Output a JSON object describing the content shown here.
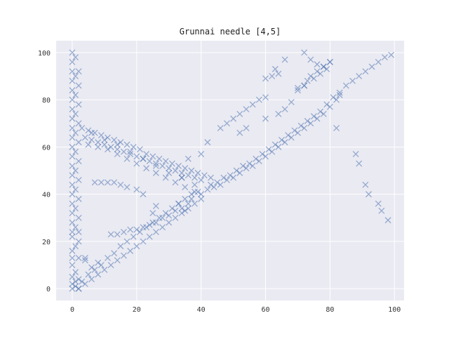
{
  "chart_data": {
    "type": "scatter",
    "title": "Grunnai needle [4,5]",
    "xlabel": "",
    "ylabel": "",
    "xlim": [
      -5,
      103
    ],
    "ylim": [
      -5,
      105
    ],
    "xticks": [
      0,
      20,
      40,
      60,
      80,
      100
    ],
    "yticks": [
      0,
      20,
      40,
      60,
      80,
      100
    ],
    "grid": true,
    "marker": "x",
    "colors": {
      "marker": "#4c72b0",
      "plot_bg": "#eaeaf2",
      "grid": "#ffffff"
    },
    "series": [
      {
        "values_description_free": true,
        "points": [
          [
            0,
            100
          ],
          [
            0,
            96
          ],
          [
            0,
            92
          ],
          [
            0,
            88
          ],
          [
            0,
            84
          ],
          [
            0,
            80
          ],
          [
            0,
            76
          ],
          [
            0,
            72
          ],
          [
            0,
            68
          ],
          [
            0,
            64
          ],
          [
            0,
            60
          ],
          [
            0,
            56
          ],
          [
            0,
            52
          ],
          [
            0,
            48
          ],
          [
            0,
            44
          ],
          [
            0,
            40
          ],
          [
            0,
            36
          ],
          [
            0,
            32
          ],
          [
            0,
            28
          ],
          [
            0,
            24
          ],
          [
            0,
            22
          ],
          [
            1,
            98
          ],
          [
            1,
            90
          ],
          [
            1,
            82
          ],
          [
            1,
            74
          ],
          [
            1,
            66
          ],
          [
            1,
            58
          ],
          [
            1,
            50
          ],
          [
            1,
            42
          ],
          [
            1,
            34
          ],
          [
            1,
            26
          ],
          [
            2,
            92
          ],
          [
            2,
            86
          ],
          [
            2,
            78
          ],
          [
            2,
            70
          ],
          [
            2,
            62
          ],
          [
            2,
            54
          ],
          [
            2,
            46
          ],
          [
            2,
            38
          ],
          [
            2,
            30
          ],
          [
            2,
            24
          ],
          [
            0,
            0
          ],
          [
            0,
            2
          ],
          [
            0,
            5
          ],
          [
            1,
            1
          ],
          [
            1,
            3
          ],
          [
            1,
            7
          ],
          [
            2,
            0
          ],
          [
            2,
            4
          ],
          [
            0,
            10
          ],
          [
            0,
            13
          ],
          [
            2,
            13
          ],
          [
            4,
            13
          ],
          [
            3,
            68
          ],
          [
            5,
            67
          ],
          [
            7,
            66
          ],
          [
            9,
            65
          ],
          [
            11,
            64
          ],
          [
            13,
            63
          ],
          [
            15,
            62
          ],
          [
            17,
            61
          ],
          [
            19,
            60
          ],
          [
            21,
            59
          ],
          [
            23,
            57
          ],
          [
            25,
            56
          ],
          [
            27,
            55
          ],
          [
            29,
            54
          ],
          [
            31,
            53
          ],
          [
            33,
            52
          ],
          [
            35,
            51
          ],
          [
            37,
            50
          ],
          [
            39,
            49
          ],
          [
            41,
            48
          ],
          [
            43,
            47
          ],
          [
            4,
            64
          ],
          [
            6,
            63
          ],
          [
            8,
            62
          ],
          [
            10,
            61
          ],
          [
            12,
            60
          ],
          [
            14,
            59
          ],
          [
            16,
            58
          ],
          [
            18,
            57
          ],
          [
            20,
            56
          ],
          [
            22,
            55
          ],
          [
            24,
            54
          ],
          [
            26,
            53
          ],
          [
            28,
            52
          ],
          [
            30,
            51
          ],
          [
            32,
            50
          ],
          [
            34,
            49
          ],
          [
            36,
            48
          ],
          [
            38,
            47
          ],
          [
            40,
            46
          ],
          [
            5,
            61
          ],
          [
            8,
            60
          ],
          [
            11,
            59
          ],
          [
            14,
            57
          ],
          [
            17,
            55
          ],
          [
            20,
            53
          ],
          [
            23,
            51
          ],
          [
            26,
            49
          ],
          [
            29,
            47
          ],
          [
            32,
            45
          ],
          [
            35,
            43
          ],
          [
            38,
            41
          ],
          [
            40,
            40
          ],
          [
            6,
            66
          ],
          [
            10,
            63
          ],
          [
            14,
            61
          ],
          [
            18,
            58
          ],
          [
            22,
            55
          ],
          [
            26,
            52
          ],
          [
            30,
            49
          ],
          [
            34,
            47
          ],
          [
            38,
            44
          ],
          [
            42,
            42
          ],
          [
            44,
            43
          ],
          [
            46,
            44
          ],
          [
            48,
            46
          ],
          [
            50,
            47
          ],
          [
            52,
            49
          ],
          [
            54,
            51
          ],
          [
            56,
            52
          ],
          [
            58,
            54
          ],
          [
            60,
            56
          ],
          [
            62,
            58
          ],
          [
            64,
            60
          ],
          [
            66,
            62
          ],
          [
            68,
            64
          ],
          [
            70,
            66
          ],
          [
            72,
            68
          ],
          [
            74,
            70
          ],
          [
            76,
            72
          ],
          [
            78,
            74
          ],
          [
            80,
            77
          ],
          [
            82,
            80
          ],
          [
            83,
            82
          ],
          [
            43,
            44
          ],
          [
            45,
            45
          ],
          [
            47,
            47
          ],
          [
            49,
            48
          ],
          [
            51,
            50
          ],
          [
            53,
            52
          ],
          [
            55,
            53
          ],
          [
            57,
            55
          ],
          [
            59,
            57
          ],
          [
            61,
            59
          ],
          [
            63,
            61
          ],
          [
            65,
            63
          ],
          [
            67,
            65
          ],
          [
            69,
            67
          ],
          [
            71,
            69
          ],
          [
            73,
            71
          ],
          [
            75,
            73
          ],
          [
            77,
            75
          ],
          [
            79,
            78
          ],
          [
            81,
            81
          ],
          [
            83,
            83
          ],
          [
            2,
            0
          ],
          [
            4,
            2
          ],
          [
            6,
            4
          ],
          [
            8,
            6
          ],
          [
            10,
            8
          ],
          [
            12,
            10
          ],
          [
            14,
            12
          ],
          [
            16,
            14
          ],
          [
            18,
            16
          ],
          [
            20,
            18
          ],
          [
            22,
            20
          ],
          [
            24,
            22
          ],
          [
            26,
            24
          ],
          [
            28,
            26
          ],
          [
            30,
            28
          ],
          [
            32,
            30
          ],
          [
            34,
            32
          ],
          [
            36,
            34
          ],
          [
            38,
            36
          ],
          [
            40,
            38
          ],
          [
            3,
            3
          ],
          [
            5,
            6
          ],
          [
            7,
            8
          ],
          [
            9,
            10
          ],
          [
            11,
            13
          ],
          [
            13,
            15
          ],
          [
            15,
            18
          ],
          [
            17,
            20
          ],
          [
            19,
            22
          ],
          [
            21,
            24
          ],
          [
            23,
            26
          ],
          [
            25,
            28
          ],
          [
            27,
            30
          ],
          [
            29,
            32
          ],
          [
            31,
            34
          ],
          [
            33,
            36
          ],
          [
            35,
            38
          ],
          [
            37,
            40
          ],
          [
            39,
            41
          ],
          [
            12,
            23
          ],
          [
            14,
            23
          ],
          [
            16,
            24
          ],
          [
            18,
            25
          ],
          [
            20,
            25
          ],
          [
            22,
            26
          ],
          [
            24,
            27
          ],
          [
            26,
            28
          ],
          [
            28,
            30
          ],
          [
            30,
            31
          ],
          [
            32,
            33
          ],
          [
            34,
            34
          ],
          [
            7,
            45
          ],
          [
            9,
            45
          ],
          [
            11,
            45
          ],
          [
            13,
            45
          ],
          [
            15,
            44
          ],
          [
            17,
            43
          ],
          [
            20,
            42
          ],
          [
            22,
            40
          ],
          [
            35,
            33
          ],
          [
            36,
            36
          ],
          [
            37,
            38
          ],
          [
            33,
            36
          ],
          [
            26,
            35
          ],
          [
            25,
            32
          ],
          [
            34,
            47
          ],
          [
            36,
            55
          ],
          [
            40,
            57
          ],
          [
            42,
            62
          ],
          [
            46,
            68
          ],
          [
            48,
            70
          ],
          [
            50,
            72
          ],
          [
            52,
            74
          ],
          [
            54,
            76
          ],
          [
            56,
            78
          ],
          [
            58,
            80
          ],
          [
            60,
            81
          ],
          [
            52,
            66
          ],
          [
            54,
            68
          ],
          [
            60,
            72
          ],
          [
            64,
            74
          ],
          [
            66,
            76
          ],
          [
            68,
            79
          ],
          [
            70,
            84
          ],
          [
            72,
            86
          ],
          [
            74,
            90
          ],
          [
            76,
            92
          ],
          [
            78,
            94
          ],
          [
            80,
            96
          ],
          [
            63,
            93
          ],
          [
            66,
            97
          ],
          [
            72,
            100
          ],
          [
            74,
            97
          ],
          [
            76,
            95
          ],
          [
            78,
            94
          ],
          [
            80,
            96
          ],
          [
            70,
            85
          ],
          [
            72,
            86
          ],
          [
            73,
            88
          ],
          [
            75,
            89
          ],
          [
            77,
            91
          ],
          [
            79,
            93
          ],
          [
            85,
            86
          ],
          [
            87,
            88
          ],
          [
            89,
            90
          ],
          [
            91,
            92
          ],
          [
            93,
            94
          ],
          [
            95,
            96
          ],
          [
            97,
            98
          ],
          [
            99,
            99
          ],
          [
            60,
            89
          ],
          [
            62,
            90
          ],
          [
            64,
            91
          ],
          [
            82,
            68
          ],
          [
            88,
            57
          ],
          [
            89,
            53
          ],
          [
            91,
            44
          ],
          [
            92,
            40
          ],
          [
            95,
            36
          ],
          [
            96,
            33
          ],
          [
            98,
            29
          ],
          [
            0,
            16
          ],
          [
            1,
            18
          ],
          [
            2,
            20
          ],
          [
            4,
            12
          ],
          [
            6,
            9
          ],
          [
            8,
            11
          ]
        ]
      }
    ]
  }
}
